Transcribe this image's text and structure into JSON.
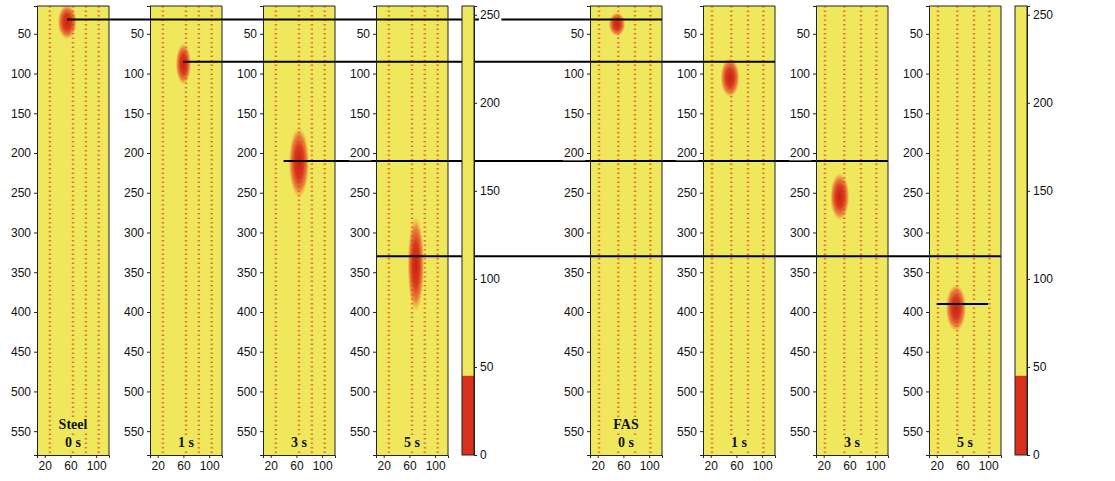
{
  "chart_data": {
    "type": "heatmap",
    "xlim": [
      8,
      120
    ],
    "xticks": [
      20,
      60,
      100
    ],
    "ylim": [
      15,
      580
    ],
    "yticks": [
      50,
      100,
      150,
      200,
      250,
      300,
      350,
      400,
      450,
      500,
      550
    ],
    "colorbar": {
      "range": [
        0,
        255
      ],
      "ticks": [
        0,
        50,
        100,
        150,
        200,
        250
      ],
      "split": 45,
      "colors": [
        "#d8301c",
        "#f0e85c"
      ]
    },
    "groups": [
      {
        "name": "Steel",
        "panels": [
          {
            "label": "0 s",
            "blob": {
              "x": 55,
              "y": 35,
              "rx": 15,
              "ry": 22
            },
            "stripes": [
              28,
              64,
              84,
              104
            ]
          },
          {
            "label": "1 s",
            "blob": {
              "x": 60,
              "y": 88,
              "rx": 12,
              "ry": 26
            },
            "stripes": [
              28,
              64,
              84,
              104
            ]
          },
          {
            "label": "3 s",
            "blob": {
              "x": 64,
              "y": 212,
              "rx": 16,
              "ry": 45
            },
            "stripes": [
              28,
              64,
              84,
              104
            ]
          },
          {
            "label": "5 s",
            "blob": {
              "x": 70,
              "y": 340,
              "rx": 13,
              "ry": 60
            },
            "stripes": [
              28,
              64,
              84,
              104
            ]
          }
        ]
      },
      {
        "name": "FAS",
        "panels": [
          {
            "label": "0 s",
            "blob": {
              "x": 50,
              "y": 38,
              "rx": 13,
              "ry": 15
            },
            "stripes": [
              22,
              52,
              78,
              102
            ]
          },
          {
            "label": "1 s",
            "blob": {
              "x": 50,
              "y": 105,
              "rx": 15,
              "ry": 25
            },
            "stripes": [
              22,
              52,
              78,
              102
            ]
          },
          {
            "label": "3 s",
            "blob": {
              "x": 45,
              "y": 255,
              "rx": 15,
              "ry": 30
            },
            "stripes": [
              22,
              52,
              78,
              102
            ]
          },
          {
            "label": "5 s",
            "blob": {
              "x": 50,
              "y": 395,
              "rx": 16,
              "ry": 30
            },
            "stripes": [
              22,
              52,
              78,
              102
            ]
          }
        ]
      }
    ],
    "reference_lines": [
      {
        "y": 32,
        "from": {
          "group": 0,
          "panel": 0,
          "x": 55
        },
        "to": {
          "group": 1,
          "panel": 0,
          "x": 120
        }
      },
      {
        "y": 85,
        "from": {
          "group": 0,
          "panel": 1,
          "x": 60
        },
        "to": {
          "group": 1,
          "panel": 1,
          "x": 120
        }
      },
      {
        "y": 210,
        "from": {
          "group": 0,
          "panel": 2,
          "x": 40
        },
        "to": {
          "group": 1,
          "panel": 2,
          "x": 120
        }
      },
      {
        "y": 330,
        "from": {
          "group": 0,
          "panel": 3,
          "x": 8
        },
        "to": {
          "group": 1,
          "panel": 3,
          "x": 120
        }
      },
      {
        "y": 390,
        "from": {
          "group": 1,
          "panel": 3,
          "x": 20
        },
        "to": {
          "group": 1,
          "panel": 3,
          "x": 100
        }
      }
    ]
  }
}
